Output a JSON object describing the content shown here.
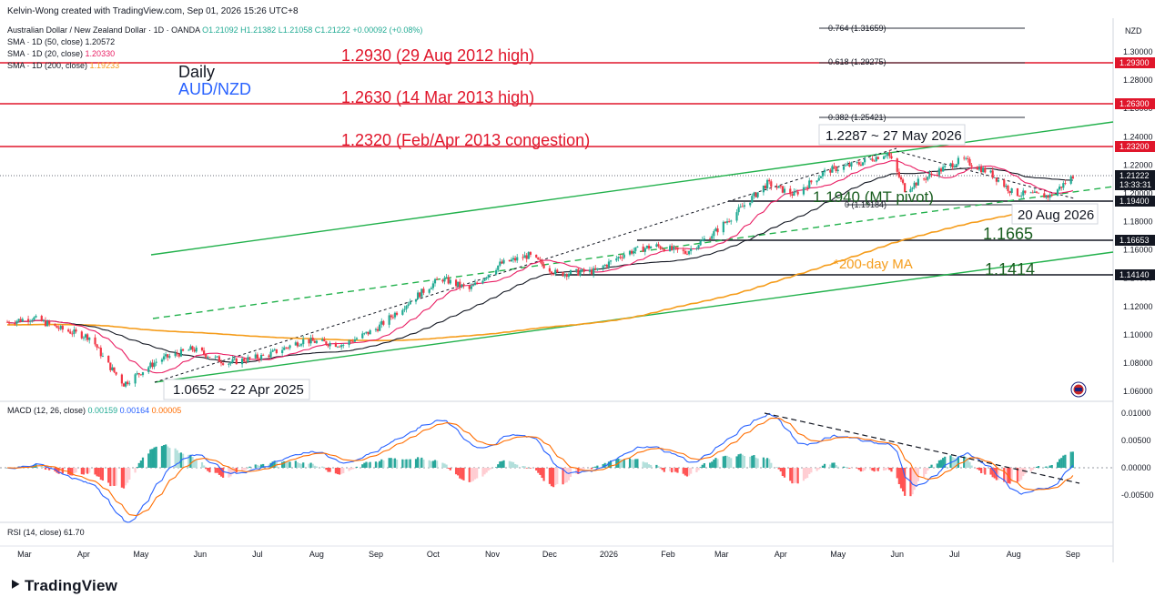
{
  "header": {
    "creator": "Kelvin-Wong created with TradingView.com, Sep 01, 2026 15:26 UTC+8",
    "symbol_line": "Australian Dollar / New Zealand Dollar · 1D · OANDA",
    "ohlc": {
      "o": "O1.21092",
      "h": "H1.21382",
      "l": "L1.21058",
      "c": "C1.21222",
      "chg": "+0.00092 (+0.08%)"
    },
    "currency": "NZD"
  },
  "legend": [
    {
      "label": "SMA · 1D (50, close)",
      "value": "1.20572",
      "color": "#131722"
    },
    {
      "label": "SMA · 1D (20, close)",
      "value": "1.20330",
      "color": "#e91e63"
    },
    {
      "label": "SMA · 1D (200, close)",
      "value": "1.19233",
      "color": "#f59c1a"
    }
  ],
  "titles": {
    "timeframe": "Daily",
    "pair": "AUD/NZD"
  },
  "colors": {
    "red": "#e0162b",
    "green": "#22b14c",
    "darkgreen": "#1a5e20",
    "up": "#22ab94",
    "down": "#f23645",
    "ma200": "#f59c1a",
    "ma20": "#e91e63",
    "ma50": "#131722",
    "macd": "#2962ff",
    "signal": "#ff6d00"
  },
  "annotations": {
    "lvl_2930": "1.2930 (29 Aug 2012 high)",
    "lvl_2630": "1.2630 (14 Mar 2013 high)",
    "lvl_2320": "1.2320 (Feb/Apr 2013 congestion)",
    "high_label": "1.2287 ~ 27 May 2026",
    "pivot_label": "1.1940 (MT pivot)",
    "aug_label": "20 Aug 2026",
    "s1665": "1.1665",
    "s1414": "1.1414",
    "ma_label": "*200-day MA",
    "low_label": "1.0652 ~ 22 Apr 2025"
  },
  "fib": [
    {
      "label": "0.764 (1.31659)"
    },
    {
      "label": "0.618 (1.29275)"
    },
    {
      "label": "0.382 (1.25421)"
    },
    {
      "label": "0 (1.19184)"
    }
  ],
  "price_axis": [
    "1.30000",
    "1.28000",
    "1.26000",
    "1.24000",
    "1.22000",
    "1.20000",
    "1.18000",
    "1.16000",
    "1.14000",
    "1.12000",
    "1.10000",
    "1.08000",
    "1.06000"
  ],
  "price_tags": [
    {
      "text": "1.29300",
      "kind": "red"
    },
    {
      "text": "1.26300",
      "kind": "red"
    },
    {
      "text": "1.23200",
      "kind": "red"
    },
    {
      "text": "1.21222",
      "kind": "dark"
    },
    {
      "text": "13:33:31",
      "kind": "dark"
    },
    {
      "text": "1.19400",
      "kind": "dark"
    },
    {
      "text": "1.16653",
      "kind": "dark"
    },
    {
      "text": "1.14140",
      "kind": "dark"
    }
  ],
  "macd": {
    "title": "MACD (12, 26, close)",
    "values": [
      {
        "v": "0.00159",
        "color": "#22ab94"
      },
      {
        "v": "0.00164",
        "color": "#2962ff"
      },
      {
        "v": "0.00005",
        "color": "#ff6d00"
      }
    ],
    "axis": [
      "0.01000",
      "0.00500",
      "0.00000",
      "-0.00500"
    ]
  },
  "rsi": {
    "title": "RSI (14, close)",
    "value": "61.70"
  },
  "time_axis": [
    "Mar",
    "Apr",
    "May",
    "Jun",
    "Jul",
    "Aug",
    "Sep",
    "Oct",
    "Nov",
    "Dec",
    "2026",
    "Feb",
    "Mar",
    "Apr",
    "May",
    "Jun",
    "Jul",
    "Aug",
    "Sep"
  ],
  "brand": "TradingView",
  "chart_data": {
    "type": "candlestick",
    "title": "AUD/NZD Daily",
    "ylim": [
      1.055,
      1.31
    ],
    "close_path": [
      [
        "2025-02-20",
        1.109
      ],
      [
        "2025-03-05",
        1.112
      ],
      [
        "2025-03-20",
        1.104
      ],
      [
        "2025-04-05",
        1.098
      ],
      [
        "2025-04-12",
        1.082
      ],
      [
        "2025-04-22",
        1.0652
      ],
      [
        "2025-05-10",
        1.082
      ],
      [
        "2025-05-28",
        1.09
      ],
      [
        "2025-06-15",
        1.08
      ],
      [
        "2025-07-05",
        1.085
      ],
      [
        "2025-07-25",
        1.096
      ],
      [
        "2025-08-15",
        1.093
      ],
      [
        "2025-09-01",
        1.104
      ],
      [
        "2025-09-20",
        1.125
      ],
      [
        "2025-10-05",
        1.14
      ],
      [
        "2025-10-20",
        1.132
      ],
      [
        "2025-11-05",
        1.15
      ],
      [
        "2025-11-20",
        1.156
      ],
      [
        "2025-12-05",
        1.143
      ],
      [
        "2025-12-25",
        1.145
      ],
      [
        "2026-01-10",
        1.158
      ],
      [
        "2026-01-25",
        1.163
      ],
      [
        "2026-02-10",
        1.158
      ],
      [
        "2026-02-25",
        1.172
      ],
      [
        "2026-03-10",
        1.188
      ],
      [
        "2026-03-25",
        1.207
      ],
      [
        "2026-04-08",
        1.199
      ],
      [
        "2026-04-25",
        1.216
      ],
      [
        "2026-05-12",
        1.221
      ],
      [
        "2026-05-27",
        1.2287
      ],
      [
        "2026-06-05",
        1.203
      ],
      [
        "2026-06-20",
        1.214
      ],
      [
        "2026-07-05",
        1.224
      ],
      [
        "2026-07-20",
        1.214
      ],
      [
        "2026-08-01",
        1.2
      ],
      [
        "2026-08-20",
        1.198
      ],
      [
        "2026-09-01",
        1.2122
      ]
    ],
    "levels": [
      1.293,
      1.263,
      1.232,
      1.194,
      1.1665,
      1.1414
    ],
    "current": 1.21222
  }
}
